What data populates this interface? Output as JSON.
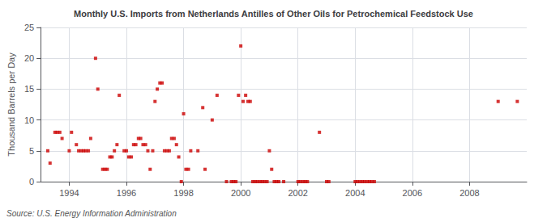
{
  "chart_data": {
    "type": "scatter",
    "title": "Monthly U.S. Imports from Netherlands Antilles of Other Oils for Petrochemical Feedstock Use",
    "ylabel": "Thousand Barrels per Day",
    "annotations": [
      "Source: U.S. Energy Information Administration"
    ],
    "color": "#cc0000",
    "marker": "square",
    "grid": true,
    "xlim": [
      1993.0,
      2010.0
    ],
    "xticks": [
      1994,
      1996,
      1998,
      2000,
      2002,
      2004,
      2006,
      2008
    ],
    "ylim": [
      0,
      25
    ],
    "yticks": [
      0,
      5,
      10,
      15,
      20,
      25
    ],
    "x": [
      1993.25,
      1993.33,
      1993.5,
      1993.58,
      1993.67,
      1993.75,
      1994.0,
      1994.08,
      1994.25,
      1994.33,
      1994.42,
      1994.5,
      1994.58,
      1994.67,
      1994.75,
      1994.92,
      1995.0,
      1995.17,
      1995.25,
      1995.33,
      1995.42,
      1995.5,
      1995.58,
      1995.67,
      1995.75,
      1995.92,
      1996.0,
      1996.08,
      1996.17,
      1996.25,
      1996.33,
      1996.42,
      1996.5,
      1996.58,
      1996.67,
      1996.75,
      1996.83,
      1996.92,
      1997.0,
      1997.08,
      1997.17,
      1997.25,
      1997.33,
      1997.42,
      1997.5,
      1997.58,
      1997.67,
      1997.75,
      1997.83,
      1997.92,
      1998.0,
      1998.08,
      1998.17,
      1998.25,
      1998.5,
      1998.67,
      1998.75,
      1999.0,
      1999.17,
      1999.5,
      1999.67,
      1999.75,
      1999.83,
      1999.92,
      2000.0,
      2000.08,
      2000.17,
      2000.25,
      2000.33,
      2000.42,
      2000.5,
      2000.58,
      2000.67,
      2000.75,
      2000.83,
      2000.92,
      2001.0,
      2001.08,
      2001.17,
      2001.25,
      2001.33,
      2001.5,
      2002.0,
      2002.08,
      2002.17,
      2002.25,
      2002.33,
      2002.75,
      2003.0,
      2003.08,
      2004.0,
      2004.08,
      2004.17,
      2004.25,
      2004.33,
      2004.42,
      2004.5,
      2004.58,
      2004.67,
      2009.0,
      2009.67
    ],
    "values": [
      5.0,
      3.0,
      8.0,
      8.0,
      8.0,
      7.0,
      5.0,
      8.0,
      6.0,
      5.0,
      5.0,
      5.0,
      5.0,
      5.0,
      7.0,
      20.0,
      15.0,
      2.0,
      2.0,
      2.0,
      4.0,
      4.0,
      5.0,
      6.0,
      14.0,
      5.0,
      5.0,
      4.0,
      4.0,
      6.0,
      6.0,
      7.0,
      7.0,
      6.0,
      6.0,
      5.0,
      2.0,
      5.0,
      13.0,
      15.0,
      16.0,
      16.0,
      5.0,
      5.0,
      5.0,
      7.0,
      7.0,
      6.0,
      4.0,
      0.0,
      11.0,
      2.0,
      2.0,
      5.0,
      5.0,
      12.0,
      2.0,
      10.0,
      14.0,
      0.0,
      0.0,
      0.0,
      0.0,
      14.0,
      22.0,
      13.0,
      14.0,
      13.0,
      13.0,
      0.0,
      0.0,
      0.0,
      0.0,
      0.0,
      0.0,
      0.0,
      5.0,
      2.0,
      0.0,
      0.0,
      0.0,
      0.0,
      0.0,
      0.0,
      0.0,
      0.0,
      0.0,
      8.0,
      0.0,
      0.0,
      0.0,
      0.0,
      0.0,
      0.0,
      0.0,
      0.0,
      0.0,
      0.0,
      0.0,
      13.0,
      13.0
    ]
  }
}
